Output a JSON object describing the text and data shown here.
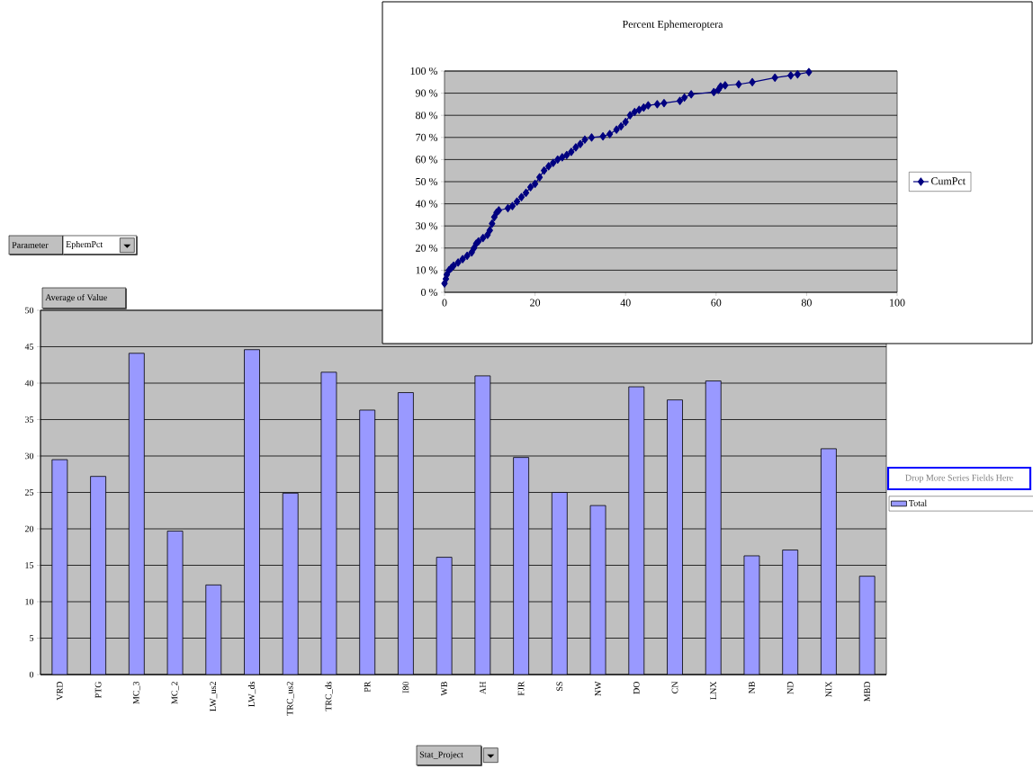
{
  "chart_data": [
    {
      "type": "line",
      "title": "Percent Ephemeroptera",
      "xlim": [
        0,
        100
      ],
      "ylim": [
        0,
        100
      ],
      "xticks": [
        0,
        20,
        40,
        60,
        80,
        100
      ],
      "yticks": [
        {
          "value": 0,
          "label": "0 %"
        },
        {
          "value": 10,
          "label": "10 %"
        },
        {
          "value": 20,
          "label": "20 %"
        },
        {
          "value": 30,
          "label": "30 %"
        },
        {
          "value": 40,
          "label": "40 %"
        },
        {
          "value": 50,
          "label": "50 %"
        },
        {
          "value": 60,
          "label": "60 %"
        },
        {
          "value": 70,
          "label": "70 %"
        },
        {
          "value": 80,
          "label": "80 %"
        },
        {
          "value": 90,
          "label": "90 %"
        },
        {
          "value": 100,
          "label": "100 %"
        }
      ],
      "grid": "y",
      "legend": "right",
      "marker": "diamond",
      "x": [
        0,
        0.3,
        0.5,
        1,
        1.5,
        2,
        3,
        4,
        5,
        6,
        6.5,
        7,
        7.5,
        8.5,
        9.5,
        10,
        10.5,
        11,
        11.5,
        12,
        14,
        15,
        16,
        17,
        18,
        19,
        20,
        21,
        22,
        23,
        24,
        25,
        26,
        27,
        28,
        29,
        30,
        31,
        32.5,
        35,
        36.5,
        38,
        39,
        40,
        41,
        42,
        43,
        44,
        45,
        47,
        48.5,
        52,
        53,
        54.5,
        59.5,
        60.5,
        61,
        62,
        65,
        68,
        73,
        76.5,
        78,
        80.5
      ],
      "series": [
        {
          "name": "CumPct",
          "color": "#000080",
          "values": [
            4,
            6,
            8,
            10,
            11,
            12,
            13.5,
            15,
            16.5,
            18,
            20,
            22,
            23,
            24.5,
            26,
            28,
            31,
            34,
            36,
            37,
            38,
            39,
            41,
            43,
            45,
            47.5,
            49,
            52,
            55,
            57,
            58.5,
            60,
            61,
            62,
            63.5,
            65.5,
            67,
            69,
            70,
            70.5,
            71.5,
            73.5,
            75,
            77,
            80,
            81.5,
            82.5,
            83.5,
            84.5,
            85,
            85.5,
            86.5,
            88,
            89.5,
            90.5,
            91.5,
            93,
            93.5,
            94,
            95,
            97,
            98,
            98.5,
            99.5
          ]
        }
      ]
    },
    {
      "type": "bar",
      "ylabel": "Average of Value",
      "xlabel": "Stat_Project",
      "ylim": [
        0,
        50
      ],
      "yticks": [
        0,
        5,
        10,
        15,
        20,
        25,
        30,
        35,
        40,
        45,
        50
      ],
      "grid": "y",
      "legend": "right",
      "categories": [
        "VRD",
        "PTG",
        "MC_3",
        "MC_2",
        "LW_us2",
        "LW_ds",
        "TRC_us2",
        "TRC_ds",
        "PR",
        "I80",
        "WB",
        "AH",
        "FJR",
        "SS",
        "NW",
        "DO",
        "CN",
        "LNX",
        "NB",
        "ND",
        "NIX",
        "MBD"
      ],
      "series": [
        {
          "name": "Total",
          "color": "#9999ff",
          "values": [
            29.5,
            27.2,
            44.1,
            19.7,
            12.3,
            44.6,
            24.9,
            41.5,
            36.3,
            38.7,
            16.1,
            41.0,
            29.8,
            25.0,
            23.2,
            39.5,
            37.7,
            40.3,
            16.3,
            17.1,
            31.0,
            13.5
          ]
        }
      ],
      "annotations": [
        "Parameter",
        "EphemPct",
        "Drop More Series Fields Here"
      ]
    }
  ]
}
